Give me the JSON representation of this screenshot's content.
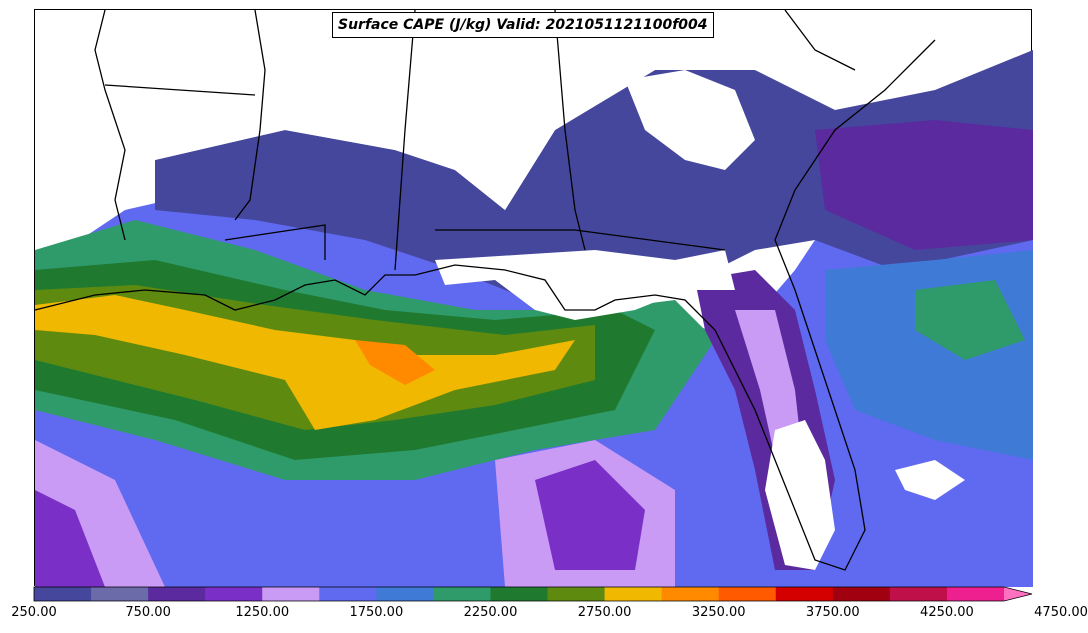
{
  "title": "Surface CAPE (J/kg) Valid: 2021051121100f004",
  "colorbar": {
    "colors": [
      "#45479c",
      "#6b6baa",
      "#5a2a9e",
      "#7a2fc7",
      "#c99bf5",
      "#5f6af0",
      "#3e7ad6",
      "#2f9a6a",
      "#1f7a30",
      "#5e8a10",
      "#f0b800",
      "#ff8a00",
      "#ff5a00",
      "#d40000",
      "#a00010",
      "#c0104a",
      "#ee2090",
      "#ff70c0"
    ],
    "ticks": [
      "250.00",
      "750.00",
      "1250.00",
      "1750.00",
      "2250.00",
      "2750.00",
      "3250.00",
      "3750.00",
      "4250.00",
      "4750.00"
    ],
    "min": 250,
    "max": 4750,
    "step": 250
  }
}
